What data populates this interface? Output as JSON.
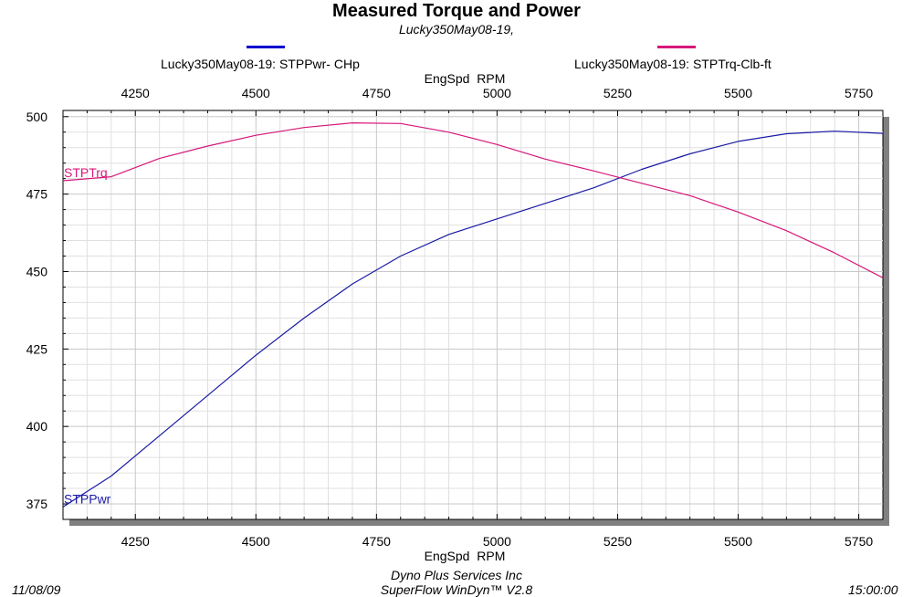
{
  "header": {
    "title": "Measured Torque and Power",
    "subtitle": "Lucky350May08-19,"
  },
  "legend": {
    "power_label": "Lucky350May08-19: STPPwr- CHp",
    "torque_label": "Lucky350May08-19: STPTrq-Clb-ft"
  },
  "footer": {
    "date": "11/08/09",
    "company": "Dyno Plus Services Inc",
    "software": "SuperFlow WinDyn™ V2.8",
    "time": "15:00:00"
  },
  "colors": {
    "power": "#1a1aa6",
    "torque": "#d6177a",
    "legend_power": "#0000cc",
    "legend_torque": "#d6177a",
    "grid": "#d0d0d0",
    "shadow": "#808080"
  },
  "chart_data": {
    "type": "line",
    "title": "Measured Torque and Power",
    "subtitle": "Lucky350May08-19,",
    "xlabel": "EngSpd  RPM",
    "ylabel": "",
    "xlim": [
      4100,
      5800
    ],
    "ylim": [
      370,
      502
    ],
    "x_ticks": [
      4250,
      4500,
      4750,
      5000,
      5250,
      5500,
      5750
    ],
    "y_ticks": [
      375,
      400,
      425,
      450,
      475,
      500
    ],
    "grid": true,
    "legend_position": "top",
    "series": [
      {
        "name": "Lucky350May08-19: STPPwr- CHp",
        "label": "STPPwr",
        "x": [
          4100,
          4200,
          4300,
          4400,
          4500,
          4600,
          4700,
          4800,
          4900,
          5000,
          5100,
          5200,
          5300,
          5400,
          5500,
          5600,
          5700,
          5800
        ],
        "values": [
          374,
          384,
          397,
          410,
          423,
          435,
          446,
          455,
          462,
          467,
          472,
          477,
          483,
          488,
          492,
          494.5,
          495.3,
          494.6
        ]
      },
      {
        "name": "Lucky350May08-19: STPTrq-Clb-ft",
        "label": "STPTrq",
        "x": [
          4100,
          4200,
          4300,
          4400,
          4500,
          4600,
          4700,
          4800,
          4900,
          5000,
          5100,
          5200,
          5300,
          5400,
          5500,
          5600,
          5700,
          5800
        ],
        "values": [
          479.3,
          480.6,
          486.5,
          490.5,
          494,
          496.5,
          498,
          497.8,
          495,
          491,
          486.3,
          482.5,
          478.5,
          474.5,
          469.2,
          463.2,
          456,
          448
        ]
      }
    ]
  }
}
